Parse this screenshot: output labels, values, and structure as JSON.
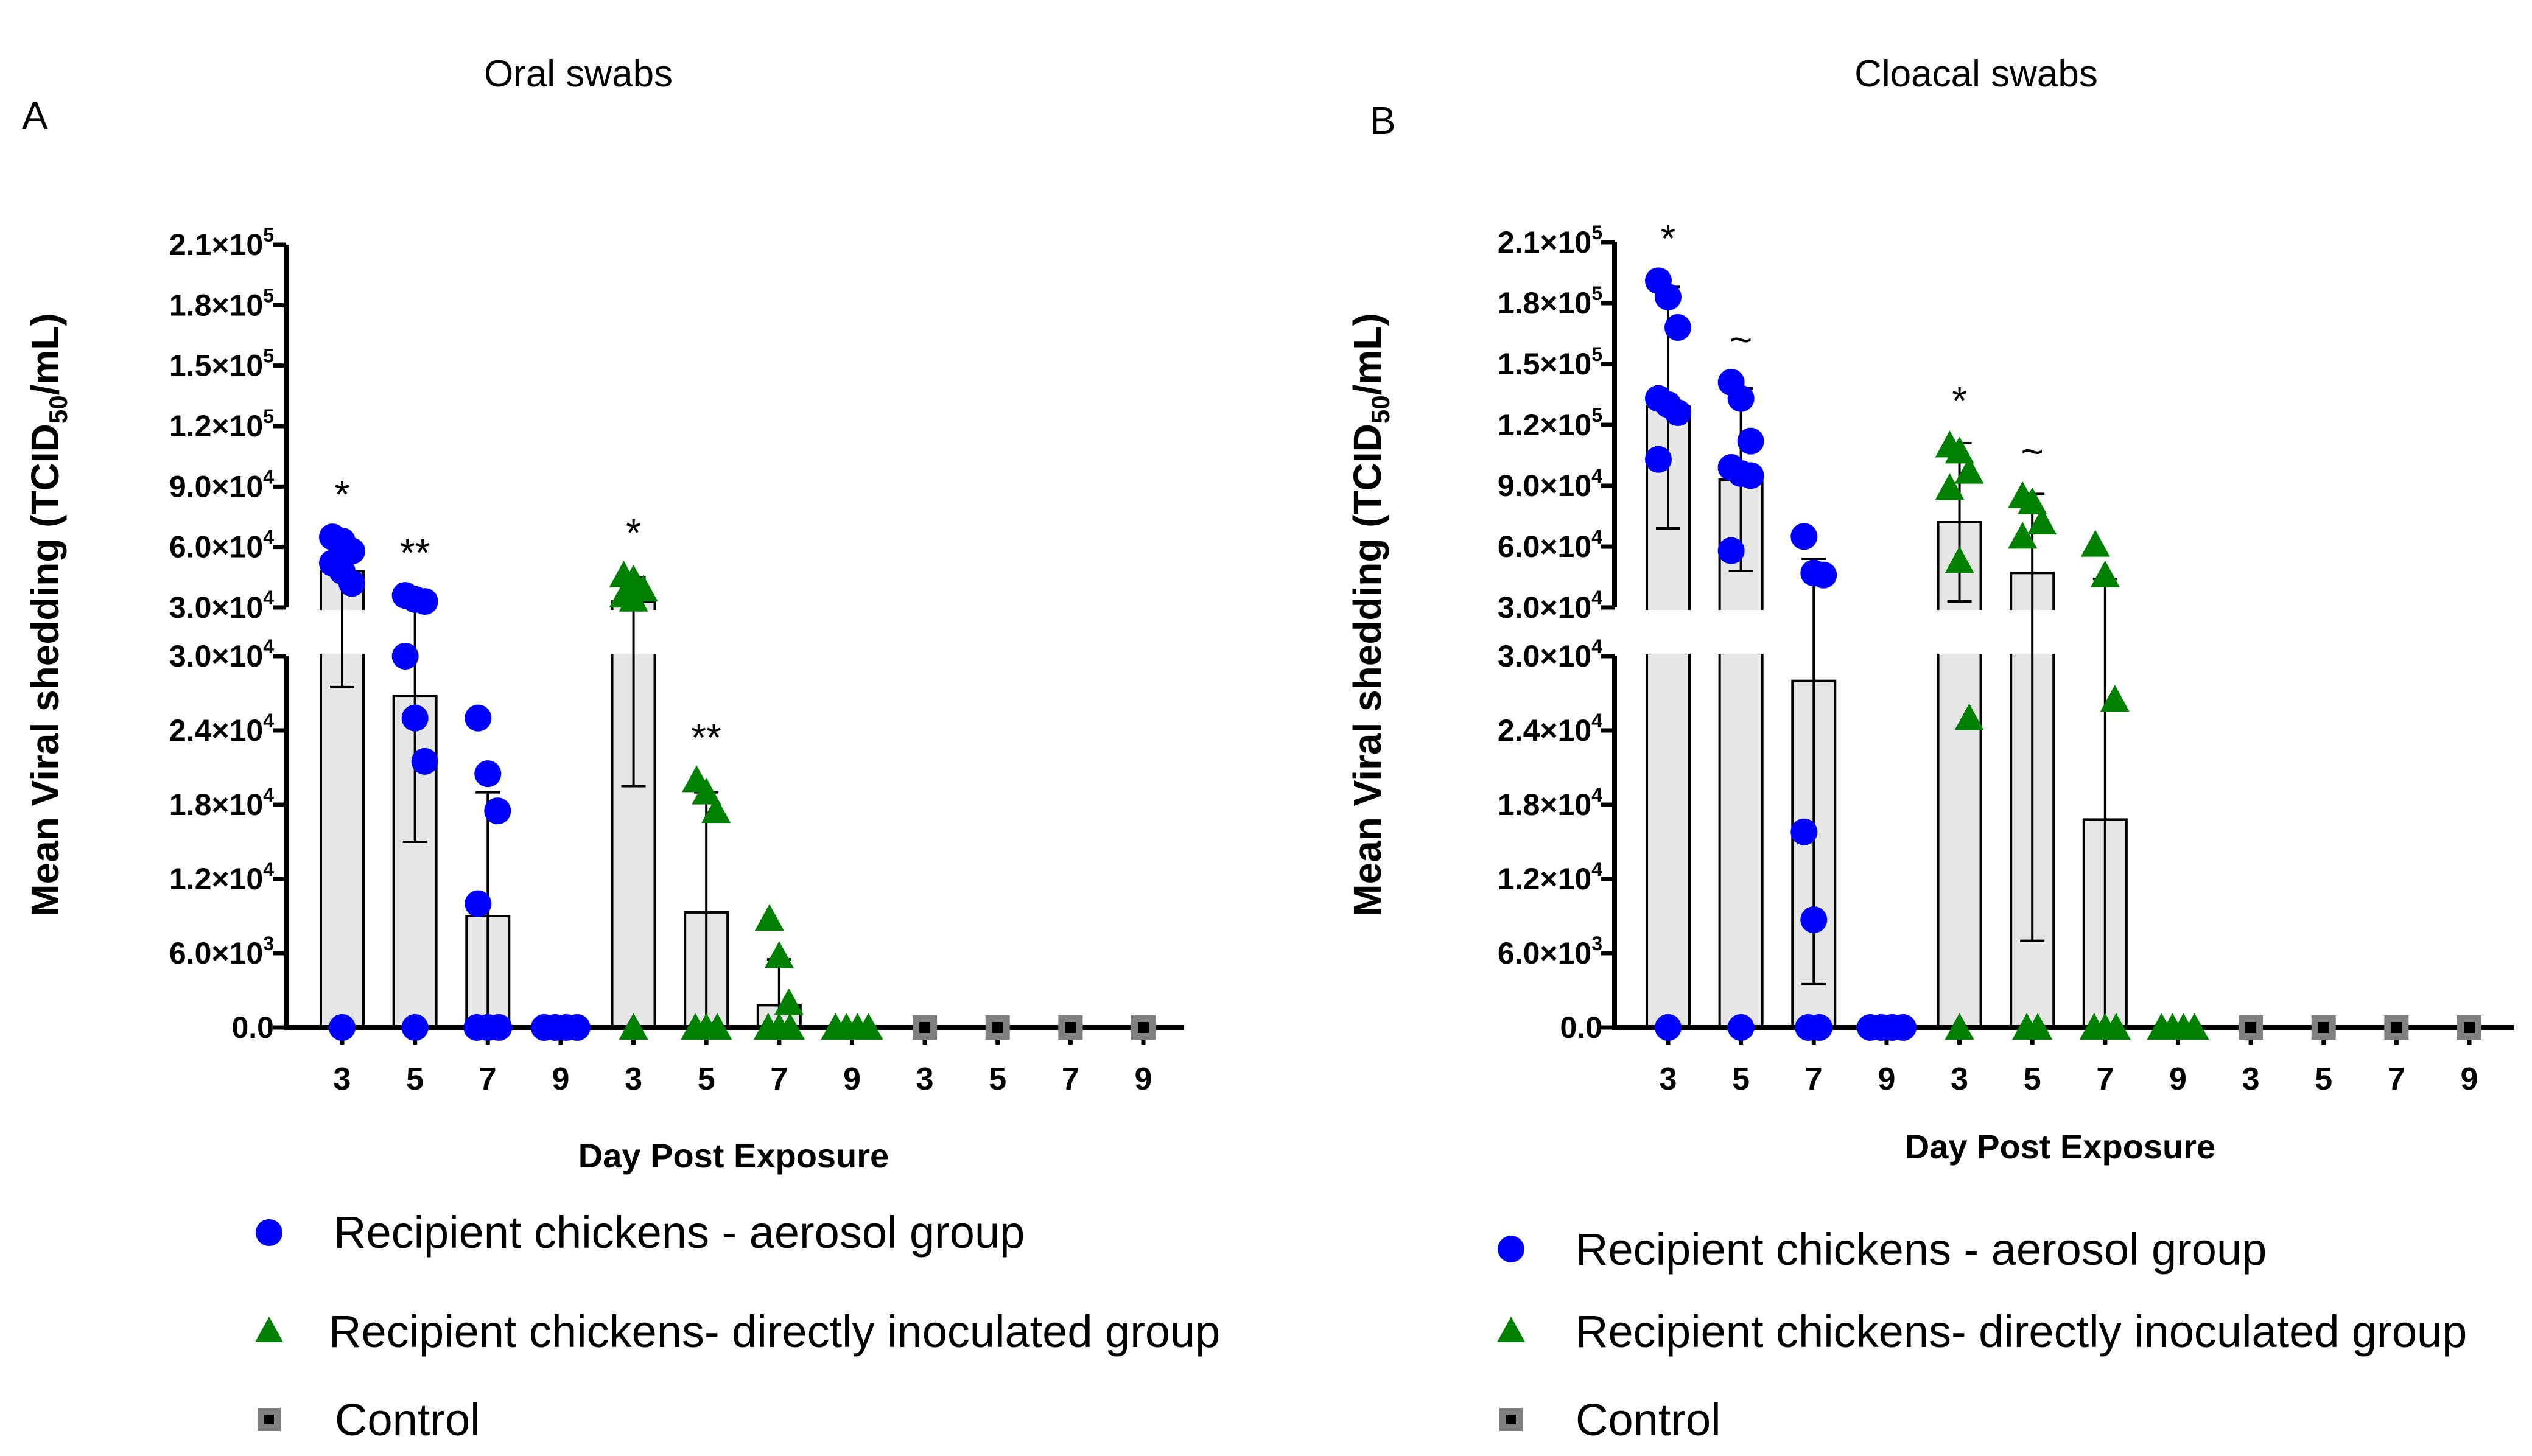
{
  "figure": {
    "legend": [
      {
        "label": "Recipient chickens - aerosol group",
        "marker": "circle",
        "color": "#0000ff"
      },
      {
        "label": "Recipient chickens- directly inoculated group",
        "marker": "triangle",
        "color": "#008000"
      },
      {
        "label": "Control",
        "marker": "square",
        "color": "#808080"
      }
    ],
    "colors": {
      "bar_fill": "#e6e6e6",
      "aerosol": "#0000ff",
      "direct": "#008000",
      "control": "#808080"
    }
  },
  "chart_data": [
    {
      "type": "bar",
      "panel_letter": "A",
      "title": "Oral swabs",
      "xlabel": "Day Post Exposure",
      "ylabel_main": "Mean Viral shedding (TCID",
      "ylabel_sub": "50",
      "ylabel_end": "/mL)",
      "categories": [
        "3",
        "5",
        "7",
        "9",
        "3",
        "5",
        "7",
        "9",
        "3",
        "5",
        "7",
        "9"
      ],
      "groups": [
        "aerosol",
        "aerosol",
        "aerosol",
        "aerosol",
        "direct",
        "direct",
        "direct",
        "direct",
        "control",
        "control",
        "control",
        "control"
      ],
      "axis_break": {
        "lower_range": [
          0,
          30000
        ],
        "upper_range": [
          30000,
          210000
        ]
      },
      "yticks_lower": [
        {
          "value": 0,
          "mant": "0.0",
          "exp": ""
        },
        {
          "value": 6000,
          "mant": "6.0×10",
          "exp": "3"
        },
        {
          "value": 12000,
          "mant": "1.2×10",
          "exp": "4"
        },
        {
          "value": 18000,
          "mant": "1.8×10",
          "exp": "4"
        },
        {
          "value": 24000,
          "mant": "2.4×10",
          "exp": "4"
        },
        {
          "value": 30000,
          "mant": "3.0×10",
          "exp": "4"
        }
      ],
      "yticks_upper": [
        {
          "value": 30000,
          "mant": "3.0×10",
          "exp": "4"
        },
        {
          "value": 60000,
          "mant": "6.0×10",
          "exp": "4"
        },
        {
          "value": 90000,
          "mant": "9.0×10",
          "exp": "4"
        },
        {
          "value": 120000,
          "mant": "1.2×10",
          "exp": "5"
        },
        {
          "value": 150000,
          "mant": "1.5×10",
          "exp": "5"
        },
        {
          "value": 180000,
          "mant": "1.8×10",
          "exp": "5"
        },
        {
          "value": 210000,
          "mant": "2.1×10",
          "exp": "5"
        }
      ],
      "means": [
        48000,
        26800,
        9000,
        0,
        33000,
        9300,
        1800,
        0,
        0,
        0,
        0,
        0
      ],
      "err_low": [
        27500,
        15000,
        0,
        0,
        19500,
        0,
        0,
        0,
        0,
        0,
        0,
        0
      ],
      "err_high": [
        58000,
        35000,
        19000,
        0,
        45000,
        19000,
        5500,
        0,
        0,
        0,
        0,
        0
      ],
      "points": [
        [
          65000,
          63000,
          58000,
          52000,
          48000,
          42000,
          0
        ],
        [
          36000,
          34000,
          33000,
          30000,
          25000,
          21500,
          0
        ],
        [
          25000,
          20500,
          17500,
          10000,
          0,
          0,
          0
        ],
        [
          0,
          0,
          0,
          0
        ],
        [
          46000,
          44000,
          39000,
          36000,
          34000,
          0
        ],
        [
          20000,
          19000,
          17500,
          0,
          0,
          0
        ],
        [
          8800,
          5800,
          2000,
          0,
          0,
          0
        ],
        [
          0,
          0,
          0,
          0
        ],
        [
          0
        ],
        [
          0
        ],
        [
          0
        ],
        [
          0
        ]
      ],
      "annotations": [
        "*",
        "**",
        "",
        "",
        "*",
        "**",
        "",
        "",
        "",
        "",
        "",
        ""
      ]
    },
    {
      "type": "bar",
      "panel_letter": "B",
      "title": "Cloacal swabs",
      "xlabel": "Day Post Exposure",
      "ylabel_main": "Mean Viral shedding (TCID",
      "ylabel_sub": "50",
      "ylabel_end": "/mL)",
      "categories": [
        "3",
        "5",
        "7",
        "9",
        "3",
        "5",
        "7",
        "9",
        "3",
        "5",
        "7",
        "9"
      ],
      "groups": [
        "aerosol",
        "aerosol",
        "aerosol",
        "aerosol",
        "direct",
        "direct",
        "direct",
        "direct",
        "control",
        "control",
        "control",
        "control"
      ],
      "axis_break": {
        "lower_range": [
          0,
          30000
        ],
        "upper_range": [
          30000,
          210000
        ]
      },
      "yticks_lower": [
        {
          "value": 0,
          "mant": "0.0",
          "exp": ""
        },
        {
          "value": 6000,
          "mant": "6.0×10",
          "exp": "3"
        },
        {
          "value": 12000,
          "mant": "1.2×10",
          "exp": "4"
        },
        {
          "value": 18000,
          "mant": "1.8×10",
          "exp": "4"
        },
        {
          "value": 24000,
          "mant": "2.4×10",
          "exp": "4"
        },
        {
          "value": 30000,
          "mant": "3.0×10",
          "exp": "4"
        }
      ],
      "yticks_upper": [
        {
          "value": 30000,
          "mant": "3.0×10",
          "exp": "4"
        },
        {
          "value": 60000,
          "mant": "6.0×10",
          "exp": "4"
        },
        {
          "value": 90000,
          "mant": "9.0×10",
          "exp": "4"
        },
        {
          "value": 120000,
          "mant": "1.2×10",
          "exp": "5"
        },
        {
          "value": 150000,
          "mant": "1.5×10",
          "exp": "5"
        },
        {
          "value": 180000,
          "mant": "1.8×10",
          "exp": "5"
        },
        {
          "value": 210000,
          "mant": "2.1×10",
          "exp": "5"
        }
      ],
      "means": [
        129000,
        93000,
        28000,
        0,
        72000,
        47000,
        16800,
        0,
        0,
        0,
        0,
        0
      ],
      "err_low": [
        69000,
        48000,
        3500,
        0,
        33000,
        7000,
        0,
        0,
        0,
        0,
        0,
        0
      ],
      "err_high": [
        188000,
        138000,
        54000,
        0,
        111000,
        86000,
        44000,
        0,
        0,
        0,
        0,
        0
      ],
      "points": [
        [
          191000,
          183000,
          168000,
          133000,
          130000,
          126000,
          103000,
          0
        ],
        [
          141000,
          133000,
          112000,
          99000,
          96000,
          95000,
          58000,
          0
        ],
        [
          65000,
          47000,
          46000,
          15800,
          8700,
          0,
          0
        ],
        [
          0,
          0,
          0,
          0
        ],
        [
          110000,
          107000,
          97000,
          89000,
          53000,
          25000,
          0
        ],
        [
          85000,
          82000,
          72000,
          65000,
          0,
          0
        ],
        [
          61000,
          46000,
          26500,
          0,
          0,
          0
        ],
        [
          0,
          0,
          0,
          0
        ],
        [
          0
        ],
        [
          0
        ],
        [
          0
        ],
        [
          0
        ]
      ],
      "annotations": [
        "*",
        "~",
        "",
        "",
        "*",
        "~",
        "",
        "",
        "",
        "",
        "",
        ""
      ]
    }
  ]
}
